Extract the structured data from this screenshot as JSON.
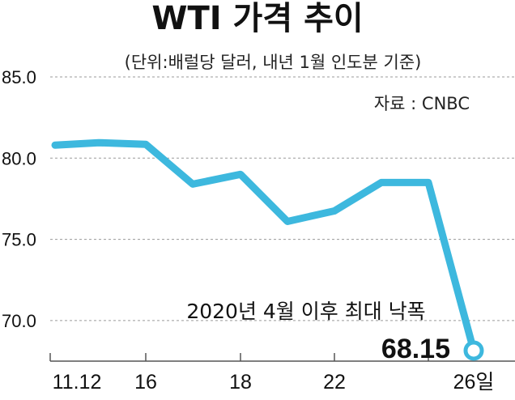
{
  "chart_data": {
    "type": "line",
    "title": "WTI 가격 추이",
    "subtitle": "(단위:배럴당 달러, 내년 1월 인도분 기준)",
    "source": "자료 : CNBC",
    "y_ticks": [
      "85.0",
      "80.0",
      "75.0",
      "70.0"
    ],
    "ylim": [
      67.5,
      85.0
    ],
    "x_tick_labels": [
      "11.12",
      "16",
      "18",
      "22",
      "26일"
    ],
    "series": [
      {
        "name": "",
        "color": "#3db8de",
        "points": [
          {
            "x": "11.12",
            "y": 80.8
          },
          {
            "x": "15",
            "y": 80.95
          },
          {
            "x": "16",
            "y": 80.85
          },
          {
            "x": "17",
            "y": 78.4
          },
          {
            "x": "18",
            "y": 79.0
          },
          {
            "x": "19",
            "y": 76.1
          },
          {
            "x": "22",
            "y": 76.75
          },
          {
            "x": "23",
            "y": 78.5
          },
          {
            "x": "24",
            "y": 78.5
          },
          {
            "x": "26",
            "y": 68.15
          }
        ]
      }
    ],
    "annotation": "2020년 4월 이후 최대 낙폭",
    "end_value_label": "68.15",
    "grid": "horizontal"
  }
}
